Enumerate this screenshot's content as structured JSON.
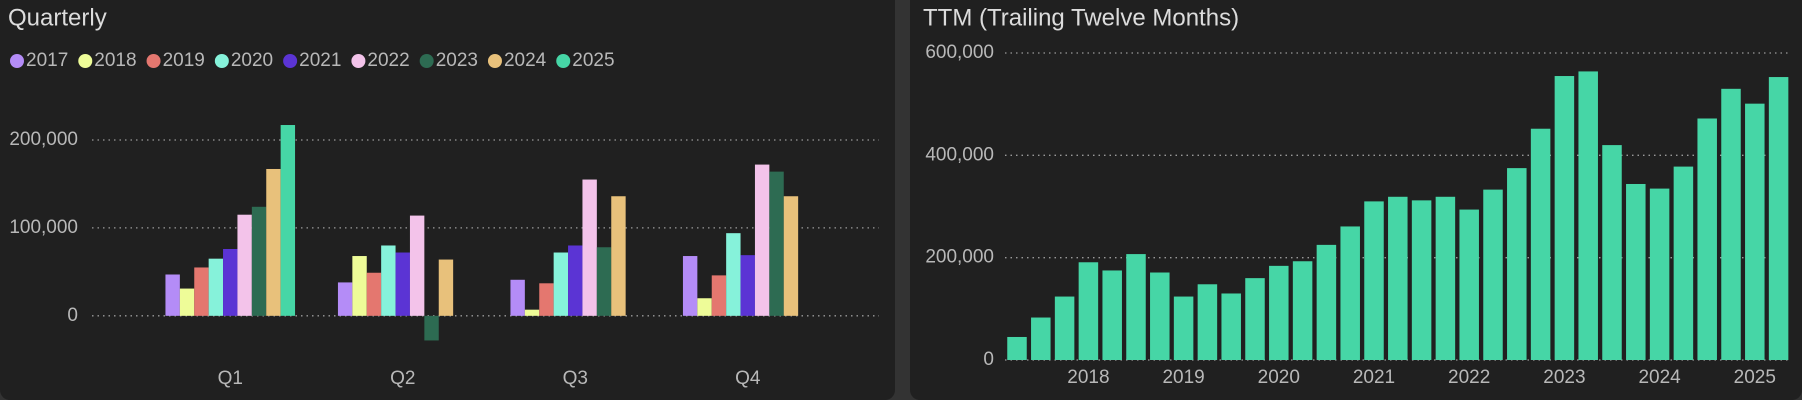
{
  "chart_data": [
    {
      "type": "bar",
      "title": "Quarterly",
      "categories": [
        "Q1",
        "Q2",
        "Q3",
        "Q4"
      ],
      "series": [
        {
          "name": "2017",
          "color": "#b48cf7",
          "values": [
            47000,
            38000,
            41000,
            68000
          ]
        },
        {
          "name": "2018",
          "color": "#eefc98",
          "values": [
            31000,
            68000,
            7000,
            20000
          ]
        },
        {
          "name": "2019",
          "color": "#e4776f",
          "values": [
            55000,
            49000,
            37000,
            46000
          ]
        },
        {
          "name": "2020",
          "color": "#86f2da",
          "values": [
            65000,
            80000,
            72000,
            94000
          ]
        },
        {
          "name": "2021",
          "color": "#5b34d4",
          "values": [
            76000,
            72000,
            80000,
            69000
          ]
        },
        {
          "name": "2022",
          "color": "#f3c3ea",
          "values": [
            115000,
            114000,
            155000,
            172000
          ]
        },
        {
          "name": "2023",
          "color": "#2d6b52",
          "values": [
            124000,
            -28000,
            78000,
            164000
          ]
        },
        {
          "name": "2024",
          "color": "#e8c17b",
          "values": [
            167000,
            64000,
            136000,
            136000
          ]
        },
        {
          "name": "2025",
          "color": "#46d6a6",
          "values": [
            217000,
            null,
            null,
            null
          ]
        }
      ],
      "ylim": [
        -40000,
        250000
      ],
      "yticks": [
        0,
        {
          "value": 100000,
          "label": "100,000"
        },
        {
          "value": 200000,
          "label": "200,000"
        }
      ],
      "grid": true,
      "legend": "top-left"
    },
    {
      "type": "bar",
      "title": "TTM (Trailing Twelve Months)",
      "color": "#46d6a6",
      "categories": [
        null,
        null,
        null,
        "2018",
        null,
        null,
        null,
        "2019",
        null,
        null,
        null,
        "2020",
        null,
        null,
        null,
        "2021",
        null,
        null,
        null,
        "2022",
        null,
        null,
        null,
        "2023",
        null,
        null,
        null,
        "2024",
        null,
        null,
        null,
        "2025",
        null
      ],
      "values": [
        45000,
        83000,
        124000,
        191000,
        175000,
        207000,
        171000,
        124000,
        148000,
        130000,
        160000,
        184000,
        193000,
        225000,
        261000,
        310000,
        319000,
        312000,
        319000,
        294000,
        333000,
        375000,
        452000,
        555000,
        564000,
        420000,
        344000,
        335000,
        378000,
        472000,
        530000,
        501000,
        553000
      ],
      "ylim": [
        0,
        600000
      ],
      "yticks": [
        0,
        {
          "value": 200000,
          "label": "200,000"
        },
        {
          "value": 400000,
          "label": "400,000"
        },
        {
          "value": 600000,
          "label": "600,000"
        }
      ],
      "grid": true
    }
  ]
}
